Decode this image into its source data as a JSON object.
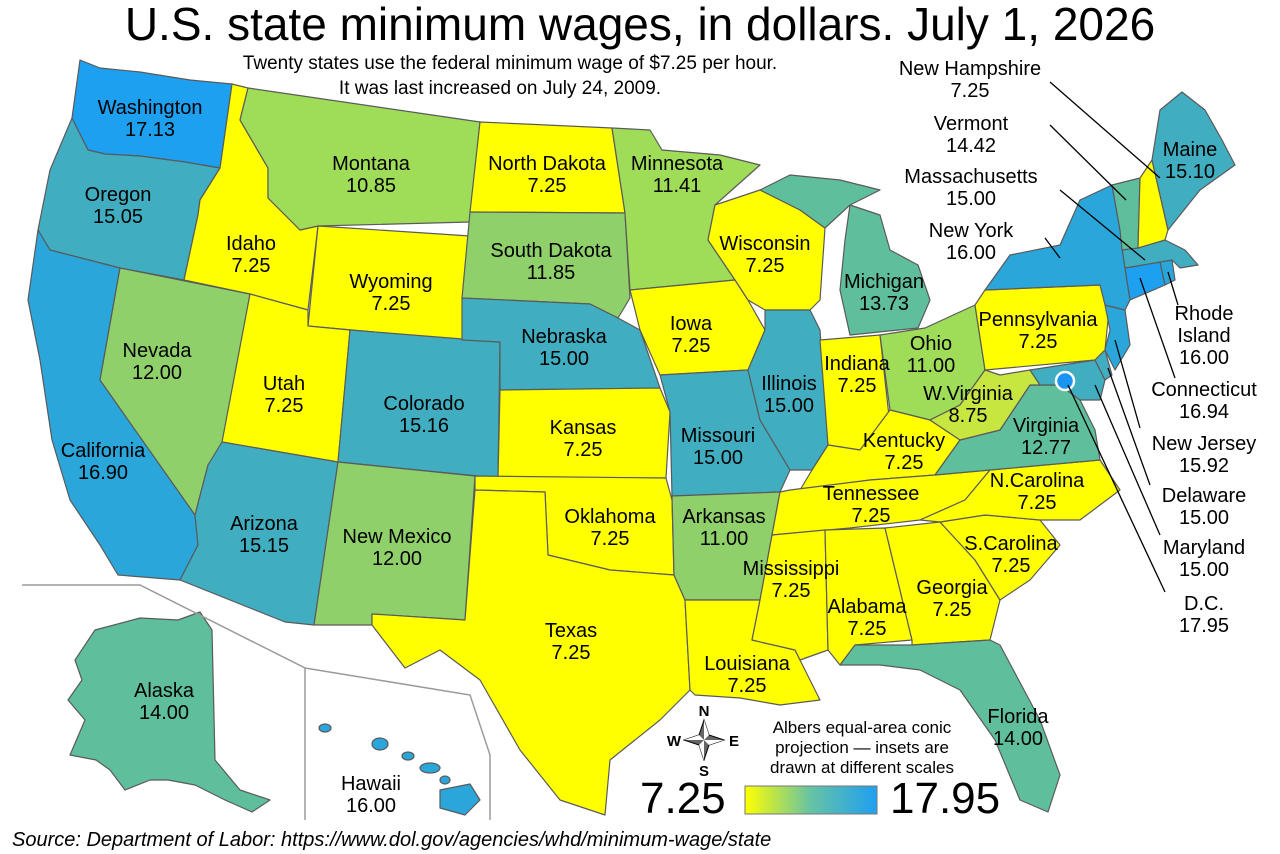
{
  "title": "U.S. state minimum wages, in dollars. July 1, 2026",
  "subtitle_line1": "Twenty states use the federal minimum wage of $7.25 per hour.",
  "subtitle_line2": "It was last increased on July 24, 2009.",
  "source": "Source: Department of Labor: https://www.dol.gov/agencies/whd/minimum-wage/state",
  "projection_note": [
    "Albers equal-area conic",
    "projection — insets are",
    "drawn at different scales"
  ],
  "compass": {
    "n": "N",
    "s": "S",
    "e": "E",
    "w": "W"
  },
  "legend": {
    "min_label": "7.25",
    "max_label": "17.95",
    "min_color": "#ffff00",
    "mid_color": "#66c2a5",
    "max_color": "#1ea0f0"
  },
  "colors": {
    "federal": "#ffff00",
    "band_10_12": "#9fdc58",
    "band_12": "#8fd06a",
    "band_13_14": "#5fbf9c",
    "band_15": "#40aec0",
    "band_16": "#2aa6da",
    "band_17": "#1ea0f0",
    "dc": "#1a94f0"
  },
  "states": [
    {
      "name": "Washington",
      "wage": "17.13"
    },
    {
      "name": "Oregon",
      "wage": "15.05"
    },
    {
      "name": "California",
      "wage": "16.90"
    },
    {
      "name": "Nevada",
      "wage": "12.00"
    },
    {
      "name": "Idaho",
      "wage": "7.25"
    },
    {
      "name": "Montana",
      "wage": "10.85"
    },
    {
      "name": "Wyoming",
      "wage": "7.25"
    },
    {
      "name": "Utah",
      "wage": "7.25"
    },
    {
      "name": "Arizona",
      "wage": "15.15"
    },
    {
      "name": "Colorado",
      "wage": "15.16"
    },
    {
      "name": "New Mexico",
      "wage": "12.00"
    },
    {
      "name": "North Dakota",
      "wage": "7.25"
    },
    {
      "name": "South Dakota",
      "wage": "11.85"
    },
    {
      "name": "Nebraska",
      "wage": "15.00"
    },
    {
      "name": "Kansas",
      "wage": "7.25"
    },
    {
      "name": "Oklahoma",
      "wage": "7.25"
    },
    {
      "name": "Texas",
      "wage": "7.25"
    },
    {
      "name": "Minnesota",
      "wage": "11.41"
    },
    {
      "name": "Iowa",
      "wage": "7.25"
    },
    {
      "name": "Missouri",
      "wage": "15.00"
    },
    {
      "name": "Arkansas",
      "wage": "11.00"
    },
    {
      "name": "Louisiana",
      "wage": "7.25"
    },
    {
      "name": "Wisconsin",
      "wage": "7.25"
    },
    {
      "name": "Illinois",
      "wage": "15.00"
    },
    {
      "name": "Michigan",
      "wage": "13.73"
    },
    {
      "name": "Indiana",
      "wage": "7.25"
    },
    {
      "name": "Ohio",
      "wage": "11.00"
    },
    {
      "name": "Kentucky",
      "wage": "7.25"
    },
    {
      "name": "Tennessee",
      "wage": "7.25"
    },
    {
      "name": "Mississippi",
      "wage": "7.25"
    },
    {
      "name": "Alabama",
      "wage": "7.25"
    },
    {
      "name": "Georgia",
      "wage": "7.25"
    },
    {
      "name": "Florida",
      "wage": "14.00"
    },
    {
      "name": "S.Carolina",
      "wage": "7.25"
    },
    {
      "name": "N.Carolina",
      "wage": "7.25"
    },
    {
      "name": "Virginia",
      "wage": "12.77"
    },
    {
      "name": "W.Virginia",
      "wage": "8.75"
    },
    {
      "name": "Pennsylvania",
      "wage": "7.25"
    },
    {
      "name": "New York",
      "wage": "16.00"
    },
    {
      "name": "Maine",
      "wage": "15.10"
    },
    {
      "name": "Alaska",
      "wage": "14.00"
    },
    {
      "name": "Hawaii",
      "wage": "16.00"
    },
    {
      "name": "New Hampshire",
      "wage": "7.25"
    },
    {
      "name": "Vermont",
      "wage": "14.42"
    },
    {
      "name": "Massachusetts",
      "wage": "15.00"
    },
    {
      "name": "Rhode",
      "name2": "Island",
      "wage": "16.00"
    },
    {
      "name": "Connecticut",
      "wage": "16.94"
    },
    {
      "name": "New Jersey",
      "wage": "15.92"
    },
    {
      "name": "Delaware",
      "wage": "15.00"
    },
    {
      "name": "Maryland",
      "wage": "15.00"
    },
    {
      "name": "D.C.",
      "wage": "17.95"
    }
  ]
}
